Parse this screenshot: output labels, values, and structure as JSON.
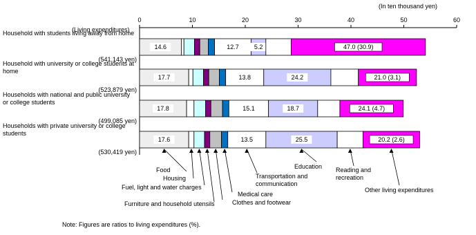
{
  "chart_data": {
    "type": "stacked-bar-horizontal",
    "x_axis_unit": "(In ten thousand yen)",
    "x_axis_label": "(Living expenditures)",
    "note": "Note: Figures are ratios to living expenditures (%).",
    "categories": [
      "Household with students living away from home",
      "Household with university or college students at home",
      "Households with national and public university or college students",
      "Households with private university or college students"
    ],
    "category_notes": [
      "(541,143 yen)",
      "(523,879 yen)",
      "(499,085 yen)",
      "(530,419 yen)"
    ],
    "xlim": [
      0,
      60
    ],
    "xticks": [
      0,
      10,
      20,
      30,
      40,
      50,
      60
    ],
    "series": [
      {
        "name": "Food",
        "color": "#eeeeee",
        "values": [
          7.9,
          9.3,
          8.9,
          9.3
        ],
        "percent_labels": [
          "14.6",
          "17.7",
          "17.8",
          "17.6"
        ]
      },
      {
        "name": "Housing",
        "color": "#ffffff",
        "values": [
          0.5,
          0.8,
          1.4,
          1.0
        ]
      },
      {
        "name": "Fuel, light and water charges",
        "color": "#ccffff",
        "values": [
          2.0,
          2.0,
          2.2,
          2.0
        ]
      },
      {
        "name": "Furniture and household utensils",
        "color": "#800080",
        "values": [
          1.0,
          1.0,
          1.0,
          1.0
        ]
      },
      {
        "name": "Clothes and footwear",
        "color": "#c0c0c0",
        "values": [
          1.6,
          2.0,
          2.2,
          2.2
        ]
      },
      {
        "name": "Medical care",
        "color": "#0070c0",
        "values": [
          1.2,
          1.2,
          1.2,
          1.2
        ]
      },
      {
        "name": "Transportation and communication",
        "color": "#ffffff",
        "values": [
          6.9,
          7.2,
          7.5,
          7.2
        ],
        "percent_labels": [
          "12.7",
          "13.8",
          "15.1",
          "13.5"
        ]
      },
      {
        "name": "Education",
        "color": "#ccccff",
        "values": [
          2.8,
          12.7,
          9.3,
          13.5
        ],
        "percent_labels": [
          "5.2",
          "24.2",
          "18.7",
          "25.5"
        ]
      },
      {
        "name": "Reading and recreation",
        "color": "#ffffff",
        "values": [
          4.8,
          5.2,
          4.2,
          4.9
        ]
      },
      {
        "name": "Other living expenditures",
        "color": "#ff00ff",
        "values": [
          25.4,
          11.0,
          12.0,
          10.7
        ],
        "percent_labels": [
          "47.0 (30.9)",
          "21.0 (3.1)",
          "24.1 (4.7)",
          "20.2 (2.6)"
        ]
      }
    ]
  }
}
